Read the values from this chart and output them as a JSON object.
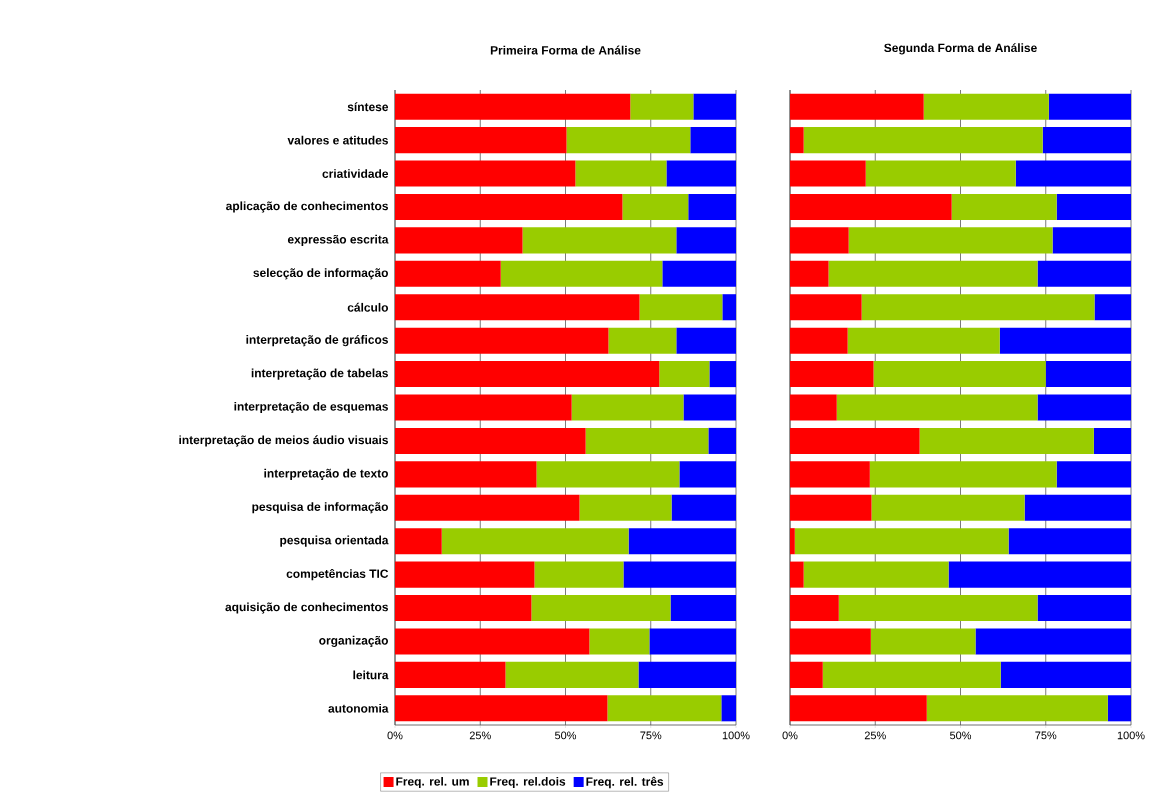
{
  "chart_data": [
    {
      "type": "bar",
      "title": "Primeira Forma de Análise",
      "orientation": "horizontal",
      "stacked": true,
      "grid": "x",
      "legend": "bottom",
      "categories": [
        "síntese",
        "valores e atitudes",
        "criatividade",
        "aplicação de conhecimentos",
        "expressão escrita",
        "selecção de informação",
        "cálculo",
        "interpretação de gráficos",
        "interpretação de tabelas",
        "interpretação de esquemas",
        "interpretação de meios áudio visuais",
        "interpretação de texto",
        "pesquisa de informação",
        "pesquisa orientada",
        "competências TIC",
        "aquisição de conhecimentos",
        "organização",
        "leitura",
        "autonomia"
      ],
      "xlim": [
        0,
        100
      ],
      "xticks": [
        {
          "value": 0,
          "label": "0%"
        },
        {
          "value": 25,
          "label": "25%"
        },
        {
          "value": 50,
          "label": "50%"
        },
        {
          "value": 75,
          "label": "75%"
        },
        {
          "value": 100,
          "label": "100%"
        }
      ],
      "series": [
        {
          "name": "Freq. rel. um",
          "color": "#ff0000",
          "values": [
            69.0,
            50.3,
            52.9,
            66.7,
            37.4,
            31.0,
            71.7,
            62.6,
            77.5,
            51.8,
            55.9,
            41.5,
            54.1,
            13.7,
            40.9,
            40.0,
            57.0,
            32.4,
            62.3
          ]
        },
        {
          "name": "Freq. rel.dois",
          "color": "#99cc00",
          "values": [
            18.5,
            36.3,
            26.7,
            19.3,
            45.1,
            47.4,
            24.3,
            19.9,
            14.7,
            32.8,
            36.0,
            41.9,
            27.0,
            54.8,
            26.1,
            40.8,
            17.6,
            39.0,
            33.4
          ]
        },
        {
          "name": "Freq. rel. três",
          "color": "#0000ff",
          "values": [
            12.5,
            13.4,
            20.4,
            14.0,
            17.5,
            21.6,
            4.0,
            17.5,
            7.8,
            15.4,
            8.1,
            16.6,
            18.9,
            31.5,
            33.0,
            19.2,
            25.4,
            28.6,
            4.3
          ]
        }
      ]
    },
    {
      "type": "bar",
      "title": "Segunda Forma de Análise",
      "orientation": "horizontal",
      "stacked": true,
      "grid": "x",
      "tick_labels": "x",
      "categories": [
        null,
        null,
        null,
        null,
        null,
        null,
        null,
        null,
        null,
        null,
        null,
        null,
        null,
        null,
        null,
        null,
        null,
        null,
        null
      ],
      "xlim": [
        0,
        100
      ],
      "xticks": [
        {
          "value": 0,
          "label": "0%"
        },
        {
          "value": 25,
          "label": "25%"
        },
        {
          "value": 50,
          "label": "50%"
        },
        {
          "value": 75,
          "label": "75%"
        },
        {
          "value": 100,
          "label": "100%"
        }
      ],
      "series": [
        {
          "color": "#ff0000",
          "values": [
            39.2,
            4.0,
            22.2,
            47.4,
            17.2,
            11.3,
            21.0,
            16.9,
            24.5,
            13.7,
            38.0,
            23.4,
            23.9,
            1.4,
            4.0,
            14.3,
            23.7,
            9.6,
            40.1
          ]
        },
        {
          "color": "#99cc00",
          "values": [
            36.7,
            70.1,
            44.0,
            30.8,
            59.8,
            61.3,
            68.3,
            44.6,
            50.5,
            58.9,
            51.1,
            54.8,
            44.9,
            62.7,
            42.5,
            58.3,
            30.7,
            52.2,
            53.1
          ]
        },
        {
          "color": "#0000ff",
          "values": [
            24.1,
            25.9,
            33.8,
            21.8,
            23.0,
            27.4,
            10.7,
            38.5,
            25.0,
            27.4,
            10.9,
            21.8,
            31.2,
            35.9,
            53.5,
            27.4,
            45.6,
            38.2,
            6.8
          ]
        }
      ]
    }
  ]
}
